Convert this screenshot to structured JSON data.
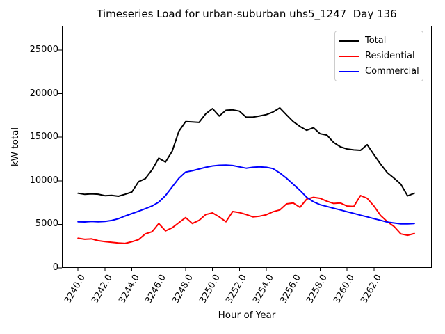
{
  "figure": {
    "background": "#ffffff"
  },
  "chart_data": {
    "type": "line",
    "title": "Timeseries Load for urban-suburban uhs5_1247  Day 136",
    "xlabel": "Hour of Year",
    "ylabel": "kW total",
    "xlim": [
      3238.8,
      3266.3
    ],
    "ylim": [
      0,
      27800
    ],
    "grid": false,
    "xticks": {
      "values": [
        3240,
        3242,
        3244,
        3246,
        3248,
        3250,
        3252,
        3254,
        3256,
        3258,
        3260,
        3262
      ],
      "labels": [
        "3240.0",
        "3242.0",
        "3244.0",
        "3246.0",
        "3248.0",
        "3250.0",
        "3252.0",
        "3254.0",
        "3256.0",
        "3258.0",
        "3260.0",
        "3262.0"
      ]
    },
    "yticks": {
      "values": [
        0,
        5000,
        10000,
        15000,
        20000,
        25000
      ],
      "labels": [
        "0",
        "5000",
        "10000",
        "15000",
        "20000",
        "25000"
      ]
    },
    "legend": {
      "position": "upper right",
      "entries": [
        "Total",
        "Residential",
        "Commercial"
      ]
    },
    "x_start": 3240.0,
    "x_step": 0.5,
    "series": [
      {
        "name": "Total",
        "color": "#000000",
        "values": [
          8570,
          8440,
          8500,
          8460,
          8290,
          8330,
          8230,
          8450,
          8710,
          9900,
          10245,
          11250,
          12600,
          12150,
          13400,
          15700,
          16800,
          16750,
          16700,
          17705,
          18290,
          17435,
          18105,
          18150,
          18000,
          17300,
          17305,
          17450,
          17600,
          17900,
          18370,
          17570,
          16800,
          16240,
          15800,
          16100,
          15400,
          15250,
          14400,
          13900,
          13655,
          13550,
          13500,
          14150,
          13000,
          11900,
          10915,
          10300,
          9600,
          8270,
          8570
        ]
      },
      {
        "name": "Residential",
        "color": "#ff0000",
        "values": [
          3400,
          3280,
          3330,
          3120,
          3010,
          2930,
          2850,
          2800,
          3000,
          3250,
          3900,
          4150,
          5100,
          4250,
          4600,
          5190,
          5775,
          5100,
          5455,
          6125,
          6310,
          5855,
          5300,
          6470,
          6350,
          6125,
          5855,
          5935,
          6100,
          6450,
          6655,
          7350,
          7450,
          6950,
          7900,
          8100,
          7990,
          7650,
          7400,
          7450,
          7100,
          7055,
          8305,
          7990,
          7100,
          6000,
          5300,
          4750,
          3900,
          3750,
          3950
        ]
      },
      {
        "name": "Commercial",
        "color": "#0000ff",
        "values": [
          5300,
          5270,
          5330,
          5300,
          5340,
          5440,
          5650,
          5950,
          6230,
          6500,
          6800,
          7100,
          7550,
          8300,
          9300,
          10300,
          11000,
          11150,
          11350,
          11550,
          11700,
          11780,
          11800,
          11750,
          11600,
          11450,
          11550,
          11600,
          11550,
          11400,
          10900,
          10300,
          9600,
          8900,
          8100,
          7590,
          7250,
          7055,
          6850,
          6655,
          6450,
          6255,
          6050,
          5855,
          5650,
          5455,
          5250,
          5150,
          5060,
          5050,
          5100
        ]
      }
    ]
  }
}
